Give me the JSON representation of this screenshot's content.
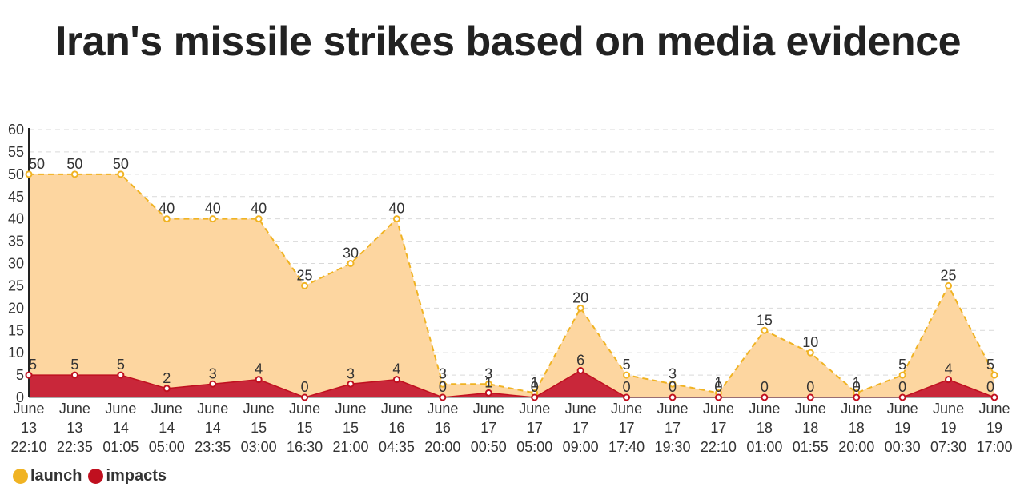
{
  "chart_data": {
    "type": "area",
    "title": "Iran's missile strikes based on media evidence",
    "xlabel": "",
    "ylabel": "",
    "ylim": [
      0,
      60
    ],
    "yticks": [
      0,
      5,
      10,
      15,
      20,
      25,
      30,
      35,
      40,
      45,
      50,
      55,
      60
    ],
    "grid": true,
    "legend_position": "bottom-left",
    "categories": [
      [
        "June",
        "13",
        "22:10"
      ],
      [
        "June",
        "13",
        "22:35"
      ],
      [
        "June",
        "14",
        "01:05"
      ],
      [
        "June",
        "14",
        "05:00"
      ],
      [
        "June",
        "14",
        "23:35"
      ],
      [
        "June",
        "15",
        "03:00"
      ],
      [
        "June",
        "15",
        "16:30"
      ],
      [
        "June",
        "15",
        "21:00"
      ],
      [
        "June",
        "16",
        "04:35"
      ],
      [
        "June",
        "16",
        "20:00"
      ],
      [
        "June",
        "17",
        "00:50"
      ],
      [
        "June",
        "17",
        "05:00"
      ],
      [
        "June",
        "17",
        "09:00"
      ],
      [
        "June",
        "17",
        "17:40"
      ],
      [
        "June",
        "17",
        "19:30"
      ],
      [
        "June",
        "17",
        "22:10"
      ],
      [
        "June",
        "18",
        "01:00"
      ],
      [
        "June",
        "18",
        "01:55"
      ],
      [
        "June",
        "18",
        "20:00"
      ],
      [
        "June",
        "19",
        "00:30"
      ],
      [
        "June",
        "19",
        "07:30"
      ],
      [
        "June",
        "19",
        "17:00"
      ]
    ],
    "series": [
      {
        "name": "launch",
        "color": "#f0b323",
        "fill": "#fdd6a0",
        "values": [
          50,
          50,
          50,
          40,
          40,
          40,
          25,
          30,
          40,
          3,
          3,
          1,
          20,
          5,
          3,
          1,
          15,
          10,
          1,
          5,
          25,
          5
        ]
      },
      {
        "name": "impacts",
        "color": "#c0101f",
        "fill": "#c9273a",
        "values": [
          5,
          5,
          5,
          2,
          3,
          4,
          0,
          3,
          4,
          0,
          1,
          0,
          6,
          0,
          0,
          0,
          0,
          0,
          0,
          0,
          4,
          0
        ]
      }
    ]
  }
}
